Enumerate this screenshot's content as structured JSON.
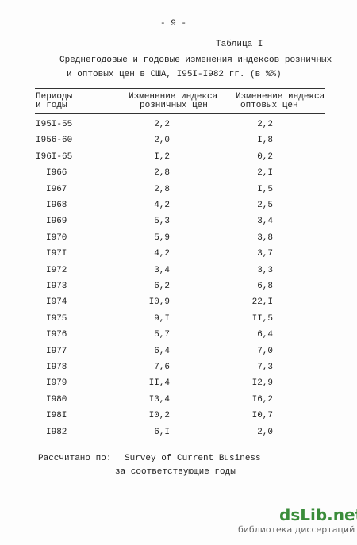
{
  "page_number": "- 9 -",
  "table_label": "Таблица I",
  "title": [
    "Среднегодовые и годовые изменения индексов розничных",
    "и оптовых цен в США, I95I-I982 гг. (в %%)"
  ],
  "table": {
    "headers": [
      [
        "Периоды",
        "и годы"
      ],
      [
        "Изменение индекса",
        "розничных цен"
      ],
      [
        "Изменение индекса",
        "оптовых цен"
      ]
    ],
    "rows": [
      [
        "I95I-55",
        "2,2",
        "2,2"
      ],
      [
        "I956-60",
        "2,0",
        "I,8"
      ],
      [
        "I96I-65",
        "I,2",
        "0,2"
      ],
      [
        "I966",
        "2,8",
        "2,I"
      ],
      [
        "I967",
        "2,8",
        "I,5"
      ],
      [
        "I968",
        "4,2",
        "2,5"
      ],
      [
        "I969",
        "5,3",
        "3,4"
      ],
      [
        "I970",
        "5,9",
        "3,8"
      ],
      [
        "I97I",
        "4,2",
        "3,7"
      ],
      [
        "I972",
        "3,4",
        "3,3"
      ],
      [
        "I973",
        "6,2",
        "6,8"
      ],
      [
        "I974",
        "I0,9",
        "22,I"
      ],
      [
        "I975",
        "9,I",
        "II,5"
      ],
      [
        "I976",
        "5,7",
        "6,4"
      ],
      [
        "I977",
        "6,4",
        "7,0"
      ],
      [
        "I978",
        "7,6",
        "7,3"
      ],
      [
        "I979",
        "II,4",
        "I2,9"
      ],
      [
        "I980",
        "I3,4",
        "I6,2"
      ],
      [
        "I98I",
        "I0,2",
        "I0,7"
      ],
      [
        "I982",
        "6,I",
        "2,0"
      ]
    ]
  },
  "source": {
    "label": "Рассчитано по:",
    "text": "Survey of Current Business",
    "note": "за соответствующие годы"
  },
  "watermark": {
    "logo": "dsLib.net",
    "caption": "библиотека диссертаций"
  }
}
